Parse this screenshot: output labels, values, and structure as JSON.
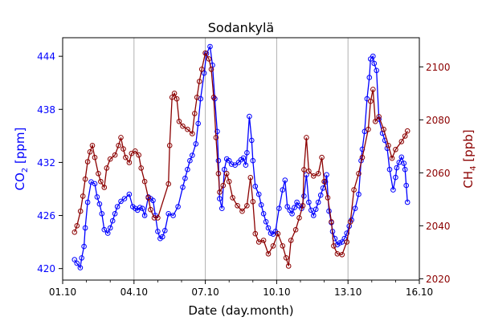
{
  "chart_data": {
    "type": "line",
    "title": "Sodankylä",
    "xlabel": "Date (day.month)",
    "x_ticks": [
      "01.10",
      "04.10",
      "07.10",
      "10.10",
      "13.10",
      "16.10"
    ],
    "x_tick_days": [
      1,
      4,
      7,
      10,
      13,
      16
    ],
    "xlim": [
      1,
      16
    ],
    "grid": "vertical-major",
    "left_axis": {
      "label": "CO",
      "label_sub": "2",
      "label_unit": " [ppm]",
      "color": "#0000ff",
      "ticks": [
        420,
        426,
        432,
        438,
        444
      ],
      "ylim": [
        418.7,
        446.1
      ]
    },
    "right_axis": {
      "label": "CH",
      "label_sub": "4",
      "label_unit": " [ppb]",
      "color": "#8b0000",
      "ticks": [
        2020,
        2040,
        2060,
        2080,
        2100
      ],
      "ylim": [
        2019.5,
        2111.0
      ]
    },
    "series": [
      {
        "name": "CO2",
        "axis": "left",
        "color": "#0000ff",
        "x": [
          1.5,
          1.6,
          1.74,
          1.8,
          1.9,
          1.95,
          2.05,
          2.2,
          2.35,
          2.45,
          2.55,
          2.65,
          2.75,
          2.9,
          3.0,
          3.1,
          3.2,
          3.3,
          3.45,
          3.6,
          3.8,
          3.95,
          4.05,
          4.15,
          4.25,
          4.35,
          4.45,
          4.6,
          4.7,
          4.8,
          4.9,
          5.0,
          5.1,
          5.2,
          5.3,
          5.45,
          5.65,
          5.85,
          6.05,
          6.15,
          6.25,
          6.35,
          6.45,
          6.6,
          6.7,
          6.8,
          6.95,
          7.05,
          7.2,
          7.3,
          7.4,
          7.5,
          7.55,
          7.6,
          7.7,
          7.8,
          7.9,
          8.0,
          8.1,
          8.25,
          8.4,
          8.5,
          8.6,
          8.7,
          8.75,
          8.85,
          8.95,
          9.0,
          9.1,
          9.25,
          9.35,
          9.45,
          9.55,
          9.65,
          9.75,
          9.85,
          9.95,
          10.1,
          10.25,
          10.35,
          10.45,
          10.55,
          10.65,
          10.75,
          10.85,
          10.95,
          11.05,
          11.15,
          11.25,
          11.35,
          11.45,
          11.55,
          11.65,
          11.75,
          11.85,
          11.95,
          12.05,
          12.1,
          12.2,
          12.3,
          12.35,
          12.45,
          12.55,
          12.65,
          12.75,
          12.85,
          12.95,
          13.05,
          13.15,
          13.3,
          13.45,
          13.55,
          13.6,
          13.7,
          13.8,
          13.9,
          13.95,
          14.05,
          14.1,
          14.2,
          14.3,
          14.45,
          14.55,
          14.65,
          14.75,
          14.9,
          15.0,
          15.05,
          15.15,
          15.25,
          15.35,
          15.4,
          15.45,
          15.5
        ],
        "values": [
          421.0,
          420.6,
          420.1,
          421.2,
          422.5,
          424.6,
          427.5,
          429.8,
          429.6,
          428.1,
          427.3,
          426.2,
          424.4,
          424.0,
          424.6,
          425.4,
          426.2,
          427.0,
          427.6,
          427.9,
          428.4,
          427.0,
          426.8,
          426.6,
          426.9,
          426.8,
          426.0,
          428.1,
          427.9,
          427.7,
          426.0,
          424.2,
          423.4,
          423.6,
          424.3,
          426.2,
          426.0,
          427.0,
          429.2,
          430.2,
          431.2,
          432.2,
          432.8,
          434.1,
          436.4,
          439.2,
          442.1,
          444.3,
          445.1,
          443.0,
          439.2,
          435.5,
          432.2,
          427.9,
          426.8,
          431.2,
          432.4,
          432.2,
          431.8,
          431.7,
          432.0,
          432.3,
          432.5,
          431.7,
          433.1,
          437.2,
          434.5,
          432.2,
          429.3,
          428.4,
          427.2,
          426.2,
          425.3,
          424.6,
          424.0,
          423.9,
          424.2,
          426.8,
          428.9,
          430.0,
          427.0,
          426.6,
          426.2,
          426.9,
          427.5,
          427.1,
          426.8,
          428.2,
          430.6,
          427.5,
          426.6,
          426.0,
          426.7,
          427.5,
          428.3,
          429.1,
          429.8,
          430.6,
          426.5,
          425.2,
          424.2,
          423.4,
          422.7,
          422.9,
          423.0,
          423.4,
          424.0,
          424.8,
          425.5,
          426.8,
          428.4,
          432.2,
          433.5,
          435.5,
          439.2,
          441.6,
          443.7,
          444.0,
          443.2,
          442.4,
          436.9,
          435.3,
          434.5,
          433.6,
          431.2,
          428.9,
          430.3,
          431.4,
          432.0,
          432.6,
          431.9,
          431.2,
          429.4,
          427.5
        ]
      },
      {
        "name": "CH4",
        "axis": "right",
        "color": "#8b0000",
        "x": [
          1.5,
          1.6,
          1.75,
          1.85,
          1.95,
          2.05,
          2.15,
          2.25,
          2.35,
          2.5,
          2.6,
          2.75,
          2.85,
          3.0,
          3.2,
          3.35,
          3.45,
          3.55,
          3.65,
          3.8,
          3.9,
          4.05,
          4.2,
          4.3,
          4.45,
          4.6,
          4.7,
          4.85,
          5.0,
          5.45,
          5.5,
          5.6,
          5.7,
          5.8,
          5.9,
          6.05,
          6.25,
          6.45,
          6.55,
          6.65,
          6.75,
          6.85,
          7.0,
          7.15,
          7.25,
          7.35,
          7.45,
          7.55,
          7.6,
          7.75,
          7.9,
          8.0,
          8.15,
          8.35,
          8.55,
          8.75,
          8.9,
          9.0,
          9.1,
          9.25,
          9.45,
          9.65,
          9.85,
          10.05,
          10.25,
          10.4,
          10.5,
          10.6,
          10.8,
          10.95,
          11.1,
          11.15,
          11.25,
          11.35,
          11.55,
          11.75,
          11.9,
          12.0,
          12.15,
          12.3,
          12.4,
          12.55,
          12.75,
          12.95,
          13.1,
          13.25,
          13.45,
          13.6,
          13.85,
          13.95,
          14.05,
          14.15,
          14.3,
          14.5,
          14.7,
          14.85,
          15.0,
          15.25,
          15.4,
          15.5
        ],
        "values": [
          2037.6,
          2040.0,
          2045.5,
          2051.2,
          2057.6,
          2064.2,
          2067.9,
          2070.3,
          2065.8,
          2059.7,
          2056.7,
          2054.5,
          2061.8,
          2065.2,
          2066.7,
          2070.3,
          2073.3,
          2069.0,
          2065.8,
          2063.9,
          2067.3,
          2068.2,
          2066.7,
          2061.8,
          2056.7,
          2050.6,
          2046.1,
          2043.0,
          2043.0,
          2055.8,
          2070.3,
          2088.5,
          2090.0,
          2087.9,
          2079.4,
          2077.6,
          2076.4,
          2074.8,
          2082.4,
          2088.5,
          2094.5,
          2099.1,
          2105.2,
          2103.0,
          2099.1,
          2088.5,
          2073.3,
          2059.7,
          2052.7,
          2055.2,
          2059.7,
          2056.7,
          2050.6,
          2047.6,
          2045.5,
          2047.6,
          2058.2,
          2049.1,
          2037.0,
          2033.9,
          2034.5,
          2029.4,
          2032.4,
          2037.0,
          2032.4,
          2027.9,
          2024.8,
          2034.5,
          2038.5,
          2043.0,
          2047.6,
          2061.2,
          2073.3,
          2060.6,
          2058.8,
          2059.7,
          2065.8,
          2056.7,
          2050.6,
          2041.5,
          2032.4,
          2029.4,
          2029.1,
          2033.9,
          2041.5,
          2053.6,
          2059.7,
          2065.8,
          2076.4,
          2087.0,
          2091.5,
          2079.4,
          2081.2,
          2076.4,
          2070.3,
          2065.5,
          2068.8,
          2071.8,
          2073.9,
          2075.8
        ]
      }
    ]
  }
}
